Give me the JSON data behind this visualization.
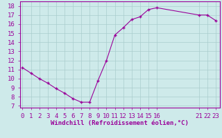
{
  "x": [
    0,
    1,
    2,
    3,
    4,
    5,
    6,
    7,
    8,
    9,
    10,
    11,
    12,
    13,
    14,
    15,
    16,
    21,
    22,
    23
  ],
  "y": [
    11.2,
    10.6,
    10.0,
    9.5,
    8.9,
    8.4,
    7.8,
    7.4,
    7.4,
    9.8,
    12.0,
    14.8,
    15.6,
    16.5,
    16.8,
    17.6,
    17.8,
    17.0,
    17.0,
    16.4
  ],
  "line_color": "#990099",
  "marker": "+",
  "bg_color": "#ceeaea",
  "grid_color": "#aacccc",
  "axis_label_color": "#990099",
  "xlabel": "Windchill (Refroidissement éolien,°C)",
  "yticks": [
    7,
    8,
    9,
    10,
    11,
    12,
    13,
    14,
    15,
    16,
    17,
    18
  ],
  "xticks": [
    0,
    1,
    2,
    3,
    4,
    5,
    6,
    7,
    8,
    9,
    10,
    11,
    12,
    13,
    14,
    15,
    16,
    21,
    22,
    23
  ],
  "xlim": [
    -0.3,
    23.5
  ],
  "ylim": [
    6.8,
    18.5
  ],
  "tick_fontsize": 6.5,
  "label_fontsize": 6.5
}
